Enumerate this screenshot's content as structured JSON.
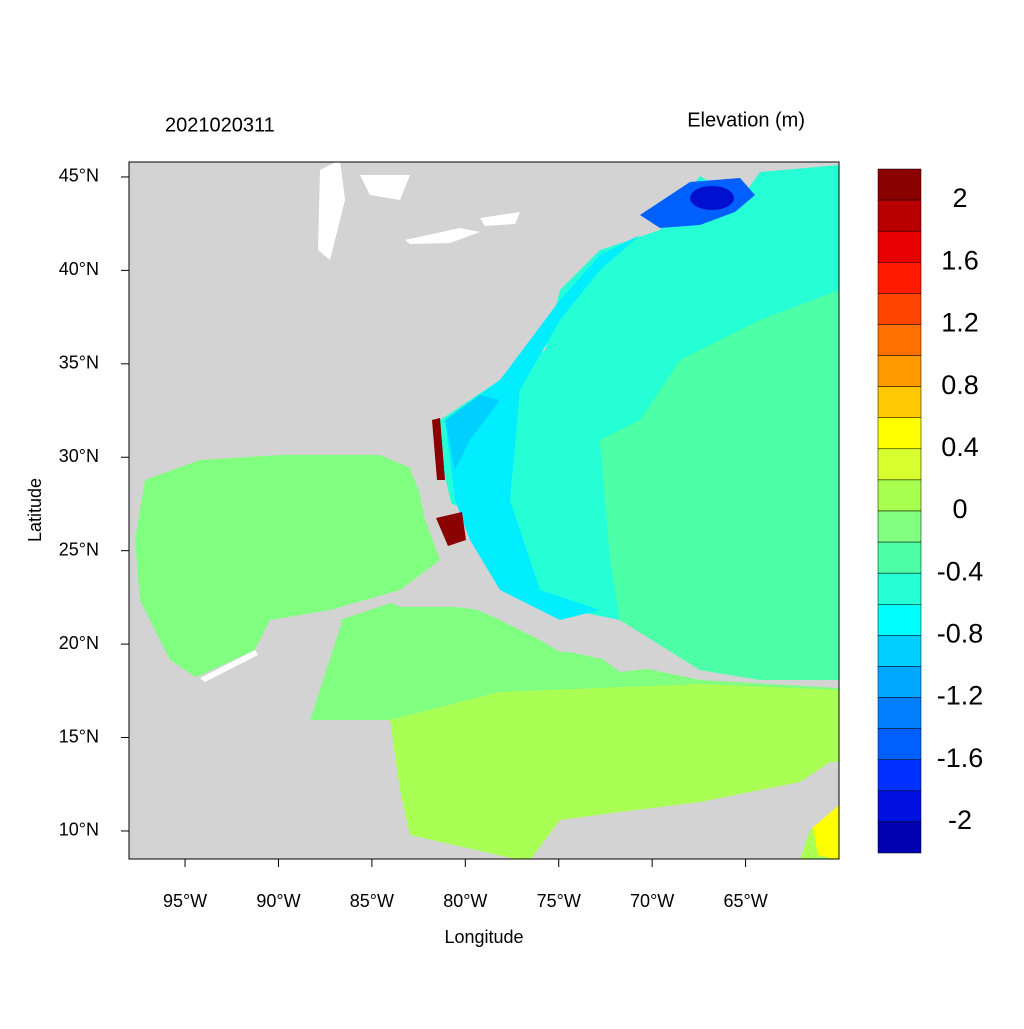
{
  "chart_data": {
    "type": "map",
    "title": "2021020311",
    "subtitle": "Elevation (m)",
    "x_label": "Longitude",
    "y_label": "Latitude",
    "xlim": [
      -98,
      -60
    ],
    "ylim": [
      8.5,
      45.8
    ],
    "xticks": [
      {
        "value": -95,
        "label": "95°W"
      },
      {
        "value": -90,
        "label": "90°W"
      },
      {
        "value": -85,
        "label": "85°W"
      },
      {
        "value": -80,
        "label": "80°W"
      },
      {
        "value": -75,
        "label": "75°W"
      },
      {
        "value": -70,
        "label": "70°W"
      },
      {
        "value": -65,
        "label": "65°W"
      }
    ],
    "yticks": [
      {
        "value": 45,
        "label": "45°N"
      },
      {
        "value": 40,
        "label": "40°N"
      },
      {
        "value": 35,
        "label": "35°N"
      },
      {
        "value": 30,
        "label": "30°N"
      },
      {
        "value": 25,
        "label": "25°N"
      },
      {
        "value": 20,
        "label": "20°N"
      },
      {
        "value": 15,
        "label": "15°N"
      },
      {
        "value": 10,
        "label": "10°N"
      }
    ],
    "colorbar": {
      "levels": [
        2,
        1.8,
        1.6,
        1.4,
        1.2,
        1,
        0.8,
        0.6,
        0.4,
        0.2,
        0,
        -0.2,
        -0.4,
        -0.6,
        -0.8,
        -1,
        -1.2,
        -1.4,
        -1.6,
        -1.8,
        -2
      ],
      "ticks": [
        2,
        1.6,
        1.2,
        0.8,
        0.4,
        0,
        -0.4,
        -0.8,
        -1.2,
        -1.6,
        -2
      ],
      "colors": [
        "#8b0000",
        "#b80000",
        "#e60000",
        "#ff1a00",
        "#ff4500",
        "#ff7000",
        "#ff9a00",
        "#ffc800",
        "#ffff00",
        "#d8ff30",
        "#a8ff50",
        "#80ff80",
        "#4dffa6",
        "#26ffd6",
        "#00ffff",
        "#00d0ff",
        "#00a8ff",
        "#0080ff",
        "#0060ff",
        "#0030ff",
        "#0010e0",
        "#0000b0"
      ]
    }
  }
}
